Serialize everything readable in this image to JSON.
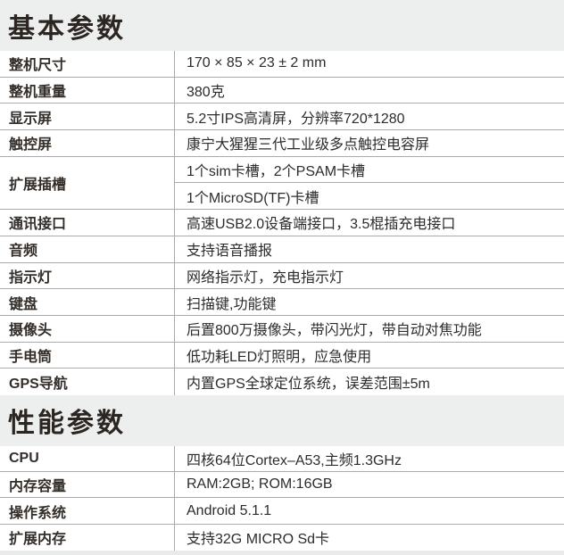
{
  "sections": [
    {
      "title": "基本参数",
      "rows": [
        {
          "label": "整机尺寸",
          "values": [
            "170 × 85 × 23 ± 2 mm"
          ]
        },
        {
          "label": "整机重量",
          "values": [
            "380克"
          ]
        },
        {
          "label": "显示屏",
          "values": [
            "5.2寸IPS高清屏，分辨率720*1280"
          ]
        },
        {
          "label": "触控屏",
          "values": [
            "康宁大猩猩三代工业级多点触控电容屏"
          ]
        },
        {
          "label": "扩展插槽",
          "values": [
            "1个sim卡槽，2个PSAM卡槽",
            "1个MicroSD(TF)卡槽"
          ]
        },
        {
          "label": "通讯接口",
          "values": [
            "高速USB2.0设备端接口，3.5棍插充电接口"
          ]
        },
        {
          "label": "音频",
          "values": [
            "支持语音播报"
          ]
        },
        {
          "label": "指示灯",
          "values": [
            "网络指示灯，充电指示灯"
          ]
        },
        {
          "label": "键盘",
          "values": [
            "扫描键,功能键"
          ]
        },
        {
          "label": "摄像头",
          "values": [
            "后置800万摄像头，带闪光灯，带自动对焦功能"
          ]
        },
        {
          "label": "手电筒",
          "values": [
            "低功耗LED灯照明，应急使用"
          ]
        },
        {
          "label": "GPS导航",
          "values": [
            "内置GPS全球定位系统，误差范围±5m"
          ]
        }
      ]
    },
    {
      "title": "性能参数",
      "rows": [
        {
          "label": "CPU",
          "values": [
            "四核64位Cortex–A53,主频1.3GHz"
          ]
        },
        {
          "label": "内存容量",
          "values": [
            "RAM:2GB; ROM:16GB"
          ]
        },
        {
          "label": "操作系统",
          "values": [
            "Android 5.1.1"
          ]
        },
        {
          "label": "扩展内存",
          "values": [
            "支持32G MICRO Sd卡"
          ]
        }
      ]
    }
  ],
  "colors": {
    "header_band": "#edefee",
    "rule": "#ababab",
    "label_text": "#332e2a",
    "value_text": "#2c2c2c",
    "title_text": "#2b2622"
  }
}
